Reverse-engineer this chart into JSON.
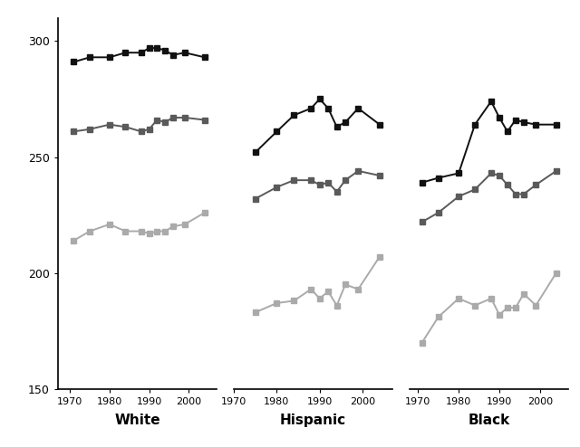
{
  "years_white": [
    1971,
    1975,
    1980,
    1984,
    1988,
    1990,
    1992,
    1994,
    1996,
    1999,
    2004
  ],
  "years_hispanic": [
    1975,
    1980,
    1984,
    1988,
    1990,
    1992,
    1994,
    1996,
    1999,
    2004
  ],
  "years_black": [
    1971,
    1975,
    1980,
    1984,
    1988,
    1990,
    1992,
    1994,
    1996,
    1999,
    2004
  ],
  "white_age17": [
    291,
    293,
    293,
    295,
    295,
    297,
    297,
    296,
    294,
    295,
    293
  ],
  "white_age13": [
    261,
    262,
    264,
    263,
    261,
    262,
    266,
    265,
    267,
    267,
    266
  ],
  "white_age9": [
    214,
    218,
    221,
    218,
    218,
    217,
    218,
    218,
    220,
    221,
    226
  ],
  "hispanic_age17": [
    252,
    261,
    268,
    271,
    275,
    271,
    263,
    265,
    271,
    264
  ],
  "hispanic_age13": [
    232,
    237,
    240,
    240,
    238,
    239,
    235,
    240,
    244,
    242
  ],
  "hispanic_age9": [
    183,
    187,
    188,
    193,
    189,
    192,
    186,
    195,
    193,
    207
  ],
  "black_age17": [
    239,
    241,
    243,
    264,
    274,
    267,
    261,
    266,
    265,
    264,
    264
  ],
  "black_age13": [
    222,
    226,
    233,
    236,
    243,
    242,
    238,
    234,
    234,
    238,
    244
  ],
  "black_age9": [
    170,
    181,
    189,
    186,
    189,
    182,
    185,
    185,
    191,
    186,
    200
  ],
  "color_age17": "#111111",
  "color_age13": "#5a5a5a",
  "color_age9": "#aaaaaa",
  "ylim": [
    150,
    310
  ],
  "yticks": [
    150,
    200,
    250,
    300
  ],
  "xlabel_white": "White",
  "xlabel_hispanic": "Hispanic",
  "xlabel_black": "Black",
  "marker": "s",
  "markersize": 4,
  "linewidth": 1.4,
  "xlim_white": [
    1967,
    2007
  ],
  "xlim_hispanic": [
    1973,
    2007
  ],
  "xlim_black": [
    1968,
    2007
  ],
  "xticks": [
    1970,
    1980,
    1990,
    2000
  ]
}
